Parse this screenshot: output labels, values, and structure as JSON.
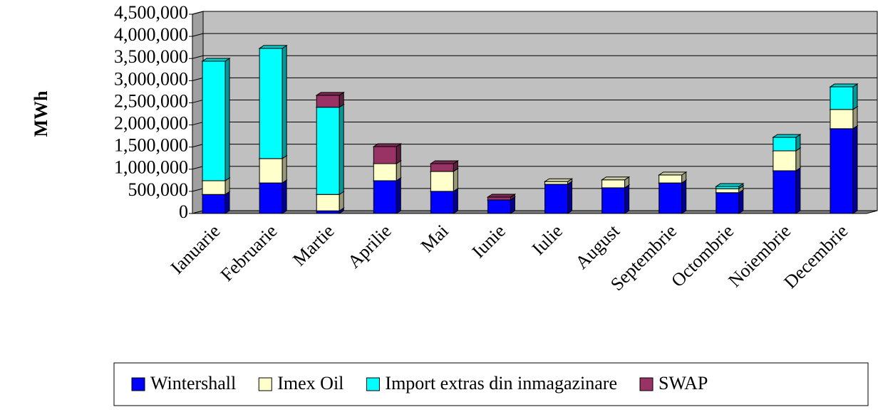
{
  "chart_data": {
    "type": "stacked_bar_3d",
    "y_label": "MWh",
    "categories": [
      "Ianuarie",
      "Februarie",
      "Martie",
      "Aprilie",
      "Mai",
      "Iunie",
      "Iulie",
      "August",
      "Septembrie",
      "Octombrie",
      "Noiembrie",
      "Decembrie"
    ],
    "series": [
      {
        "name": "Wintershall",
        "color": "#0000ff",
        "values": [
          430000,
          690000,
          60000,
          740000,
          500000,
          305000,
          660000,
          580000,
          690000,
          470000,
          965000,
          1915000
        ]
      },
      {
        "name": "Imex Oil",
        "color": "#ffffcc",
        "values": [
          310000,
          550000,
          370000,
          385000,
          450000,
          0,
          60000,
          180000,
          180000,
          90000,
          450000,
          435000
        ]
      },
      {
        "name": "Import extras din inmagazinare",
        "color": "#00ffff",
        "values": [
          2700000,
          2490000,
          1970000,
          0,
          0,
          0,
          0,
          0,
          0,
          50000,
          305000,
          510000
        ]
      },
      {
        "name": "SWAP",
        "color": "#993366",
        "values": [
          0,
          0,
          270000,
          385000,
          175000,
          65000,
          0,
          0,
          0,
          0,
          0,
          0
        ]
      }
    ],
    "ylim": [
      0,
      4500000
    ],
    "yticks": [
      0,
      {
        "value": 500000,
        "label": "500,000"
      },
      {
        "value": 1000000,
        "label": "1,000,000"
      },
      {
        "value": 1500000,
        "label": "1,500,000"
      },
      {
        "value": 2000000,
        "label": "2,000,000"
      },
      {
        "value": 2500000,
        "label": "2,500,000"
      },
      {
        "value": 3000000,
        "label": "3,000,000"
      },
      {
        "value": 3500000,
        "label": "3,500,000"
      },
      {
        "value": 4000000,
        "label": "4,000,000"
      },
      {
        "value": 4500000,
        "label": "4,500,000"
      }
    ],
    "grid": true,
    "legend": "bottom",
    "wall_color": "#c0c0c0"
  }
}
